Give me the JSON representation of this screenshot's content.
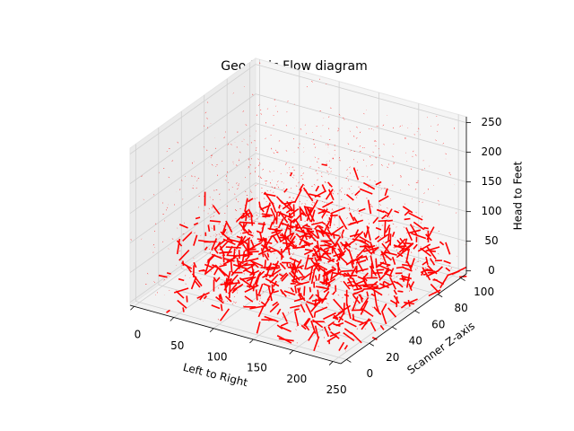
{
  "chart_data": {
    "type": "quiver3d",
    "title": "Geodesic Flow diagram",
    "xlabel": "Left to Right",
    "ylabel": "Scanner Z-axis",
    "zlabel": "Head to Feet",
    "color": "#ff0000",
    "grid": true,
    "xlim": [
      -5,
      260
    ],
    "ylim": [
      -5,
      105
    ],
    "zlim": [
      -5,
      260
    ],
    "xticks": [
      0,
      50,
      100,
      150,
      200,
      250
    ],
    "yticks": [
      0,
      20,
      40,
      60,
      80,
      100
    ],
    "zticks": [
      0,
      50,
      100,
      150,
      200,
      250
    ]
  }
}
